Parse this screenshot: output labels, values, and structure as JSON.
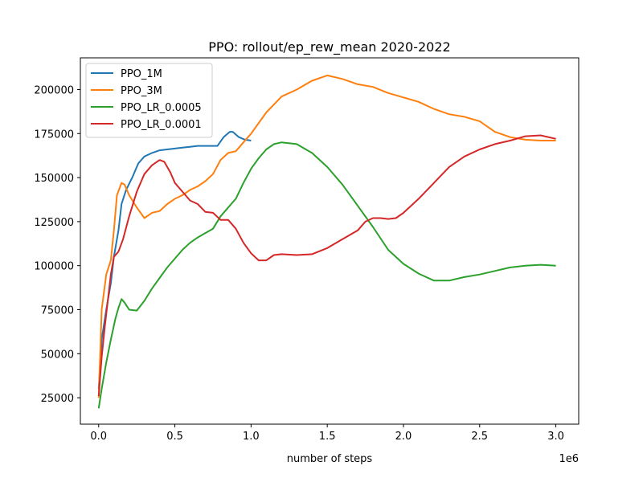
{
  "chart_data": {
    "type": "line",
    "title": "PPO: rollout/ep_rew_mean 2020-2022",
    "xlabel": "number of steps",
    "x_offset_label": "1e6",
    "ylabel": "",
    "xlim": [
      -0.12,
      3.15
    ],
    "ylim": [
      10000,
      218000
    ],
    "x_ticks": [
      0.0,
      0.5,
      1.0,
      1.5,
      2.0,
      2.5,
      3.0
    ],
    "x_tick_labels": [
      "0.0",
      "0.5",
      "1.0",
      "1.5",
      "2.0",
      "2.5",
      "3.0"
    ],
    "y_ticks": [
      25000,
      50000,
      75000,
      100000,
      125000,
      150000,
      175000,
      200000
    ],
    "y_tick_labels": [
      "25000",
      "50000",
      "75000",
      "100000",
      "125000",
      "150000",
      "175000",
      "200000"
    ],
    "grid": false,
    "legend_position": "top-left",
    "series": [
      {
        "name": "PPO_1M",
        "color": "#1f77b4",
        "points": [
          [
            0.0,
            30000
          ],
          [
            0.02,
            58000
          ],
          [
            0.05,
            75000
          ],
          [
            0.08,
            90000
          ],
          [
            0.1,
            105000
          ],
          [
            0.13,
            120000
          ],
          [
            0.15,
            135000
          ],
          [
            0.18,
            143000
          ],
          [
            0.22,
            150000
          ],
          [
            0.26,
            158000
          ],
          [
            0.3,
            162000
          ],
          [
            0.35,
            164000
          ],
          [
            0.4,
            165500
          ],
          [
            0.45,
            166000
          ],
          [
            0.5,
            166500
          ],
          [
            0.55,
            167000
          ],
          [
            0.6,
            167500
          ],
          [
            0.65,
            168000
          ],
          [
            0.7,
            168000
          ],
          [
            0.78,
            168000
          ],
          [
            0.82,
            173000
          ],
          [
            0.86,
            176000
          ],
          [
            0.88,
            176000
          ],
          [
            0.92,
            173000
          ],
          [
            0.96,
            171500
          ],
          [
            1.0,
            171000
          ]
        ]
      },
      {
        "name": "PPO_3M",
        "color": "#ff7f0e",
        "points": [
          [
            0.0,
            25000
          ],
          [
            0.02,
            75000
          ],
          [
            0.05,
            95000
          ],
          [
            0.08,
            103000
          ],
          [
            0.1,
            120000
          ],
          [
            0.12,
            140000
          ],
          [
            0.15,
            147000
          ],
          [
            0.17,
            146000
          ],
          [
            0.2,
            140000
          ],
          [
            0.25,
            133000
          ],
          [
            0.3,
            127000
          ],
          [
            0.35,
            130000
          ],
          [
            0.4,
            131000
          ],
          [
            0.45,
            135000
          ],
          [
            0.5,
            138000
          ],
          [
            0.55,
            140000
          ],
          [
            0.6,
            143000
          ],
          [
            0.65,
            145000
          ],
          [
            0.7,
            148000
          ],
          [
            0.75,
            152000
          ],
          [
            0.8,
            160000
          ],
          [
            0.85,
            164000
          ],
          [
            0.9,
            165000
          ],
          [
            0.95,
            170000
          ],
          [
            1.0,
            175000
          ],
          [
            1.1,
            187000
          ],
          [
            1.2,
            196000
          ],
          [
            1.3,
            200000
          ],
          [
            1.4,
            205000
          ],
          [
            1.5,
            208000
          ],
          [
            1.6,
            206000
          ],
          [
            1.7,
            203000
          ],
          [
            1.8,
            201500
          ],
          [
            1.9,
            198000
          ],
          [
            2.0,
            195500
          ],
          [
            2.1,
            193000
          ],
          [
            2.2,
            189000
          ],
          [
            2.3,
            186000
          ],
          [
            2.4,
            184500
          ],
          [
            2.5,
            182000
          ],
          [
            2.6,
            176000
          ],
          [
            2.7,
            173000
          ],
          [
            2.8,
            171500
          ],
          [
            2.9,
            171000
          ],
          [
            3.0,
            171000
          ]
        ]
      },
      {
        "name": "PPO_LR_0.0005",
        "color": "#2ca02c",
        "points": [
          [
            0.0,
            19000
          ],
          [
            0.02,
            30000
          ],
          [
            0.05,
            45000
          ],
          [
            0.08,
            58000
          ],
          [
            0.11,
            70000
          ],
          [
            0.13,
            76000
          ],
          [
            0.15,
            81000
          ],
          [
            0.17,
            79000
          ],
          [
            0.2,
            75000
          ],
          [
            0.25,
            74500
          ],
          [
            0.3,
            80000
          ],
          [
            0.35,
            87000
          ],
          [
            0.4,
            93000
          ],
          [
            0.45,
            99000
          ],
          [
            0.5,
            104000
          ],
          [
            0.55,
            109000
          ],
          [
            0.6,
            113000
          ],
          [
            0.65,
            116000
          ],
          [
            0.7,
            118500
          ],
          [
            0.75,
            121000
          ],
          [
            0.8,
            128000
          ],
          [
            0.85,
            133000
          ],
          [
            0.9,
            138000
          ],
          [
            0.95,
            147000
          ],
          [
            1.0,
            155000
          ],
          [
            1.05,
            161000
          ],
          [
            1.1,
            166000
          ],
          [
            1.15,
            169000
          ],
          [
            1.2,
            170000
          ],
          [
            1.3,
            169000
          ],
          [
            1.4,
            164000
          ],
          [
            1.5,
            156000
          ],
          [
            1.6,
            146000
          ],
          [
            1.7,
            134000
          ],
          [
            1.8,
            122000
          ],
          [
            1.9,
            109000
          ],
          [
            2.0,
            101000
          ],
          [
            2.1,
            95500
          ],
          [
            2.2,
            91500
          ],
          [
            2.3,
            91500
          ],
          [
            2.4,
            93500
          ],
          [
            2.5,
            95000
          ],
          [
            2.6,
            97000
          ],
          [
            2.7,
            99000
          ],
          [
            2.8,
            100000
          ],
          [
            2.9,
            100500
          ],
          [
            3.0,
            100000
          ]
        ]
      },
      {
        "name": "PPO_LR_0.0001",
        "color": "#d62728",
        "points": [
          [
            0.0,
            26000
          ],
          [
            0.02,
            48000
          ],
          [
            0.04,
            65000
          ],
          [
            0.06,
            80000
          ],
          [
            0.08,
            95000
          ],
          [
            0.1,
            105000
          ],
          [
            0.13,
            108000
          ],
          [
            0.16,
            115000
          ],
          [
            0.2,
            128000
          ],
          [
            0.25,
            142000
          ],
          [
            0.3,
            152000
          ],
          [
            0.35,
            157000
          ],
          [
            0.4,
            160000
          ],
          [
            0.43,
            159000
          ],
          [
            0.47,
            153000
          ],
          [
            0.5,
            147000
          ],
          [
            0.55,
            142000
          ],
          [
            0.6,
            137000
          ],
          [
            0.65,
            135000
          ],
          [
            0.7,
            130500
          ],
          [
            0.75,
            130000
          ],
          [
            0.8,
            126000
          ],
          [
            0.85,
            126000
          ],
          [
            0.9,
            121000
          ],
          [
            0.95,
            113000
          ],
          [
            1.0,
            107000
          ],
          [
            1.05,
            103000
          ],
          [
            1.1,
            103000
          ],
          [
            1.15,
            106000
          ],
          [
            1.2,
            106500
          ],
          [
            1.3,
            106000
          ],
          [
            1.4,
            106500
          ],
          [
            1.5,
            110000
          ],
          [
            1.6,
            115000
          ],
          [
            1.7,
            120000
          ],
          [
            1.75,
            125000
          ],
          [
            1.8,
            127000
          ],
          [
            1.85,
            127000
          ],
          [
            1.9,
            126500
          ],
          [
            1.95,
            127000
          ],
          [
            2.0,
            130000
          ],
          [
            2.1,
            138000
          ],
          [
            2.2,
            147000
          ],
          [
            2.3,
            156000
          ],
          [
            2.4,
            162000
          ],
          [
            2.5,
            166000
          ],
          [
            2.6,
            169000
          ],
          [
            2.7,
            171000
          ],
          [
            2.8,
            173500
          ],
          [
            2.9,
            174000
          ],
          [
            3.0,
            172000
          ]
        ]
      }
    ]
  }
}
